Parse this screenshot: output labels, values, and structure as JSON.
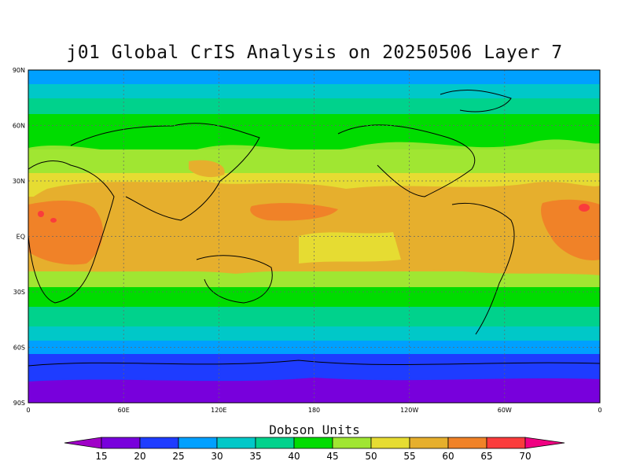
{
  "title": "j01 Global CrIS Analysis on 20250506 Layer 7",
  "map": {
    "lat_labels": [
      "90N",
      "60N",
      "30N",
      "EQ",
      "30S",
      "60S",
      "90S"
    ],
    "lon_labels": [
      "0",
      "60E",
      "120E",
      "180",
      "120W",
      "60W",
      "0"
    ],
    "gridlines": "dotted"
  },
  "colorbar": {
    "title": "Dobson Units",
    "ticks": [
      "15",
      "20",
      "25",
      "30",
      "35",
      "40",
      "45",
      "50",
      "55",
      "60",
      "65",
      "70"
    ],
    "colors": [
      "#a000c8",
      "#7800dc",
      "#1e3cff",
      "#00a0ff",
      "#00c8c8",
      "#00d28c",
      "#00dc00",
      "#a0e632",
      "#e6dc32",
      "#e6af2d",
      "#f08228",
      "#fa3c3c",
      "#f00082"
    ]
  }
}
